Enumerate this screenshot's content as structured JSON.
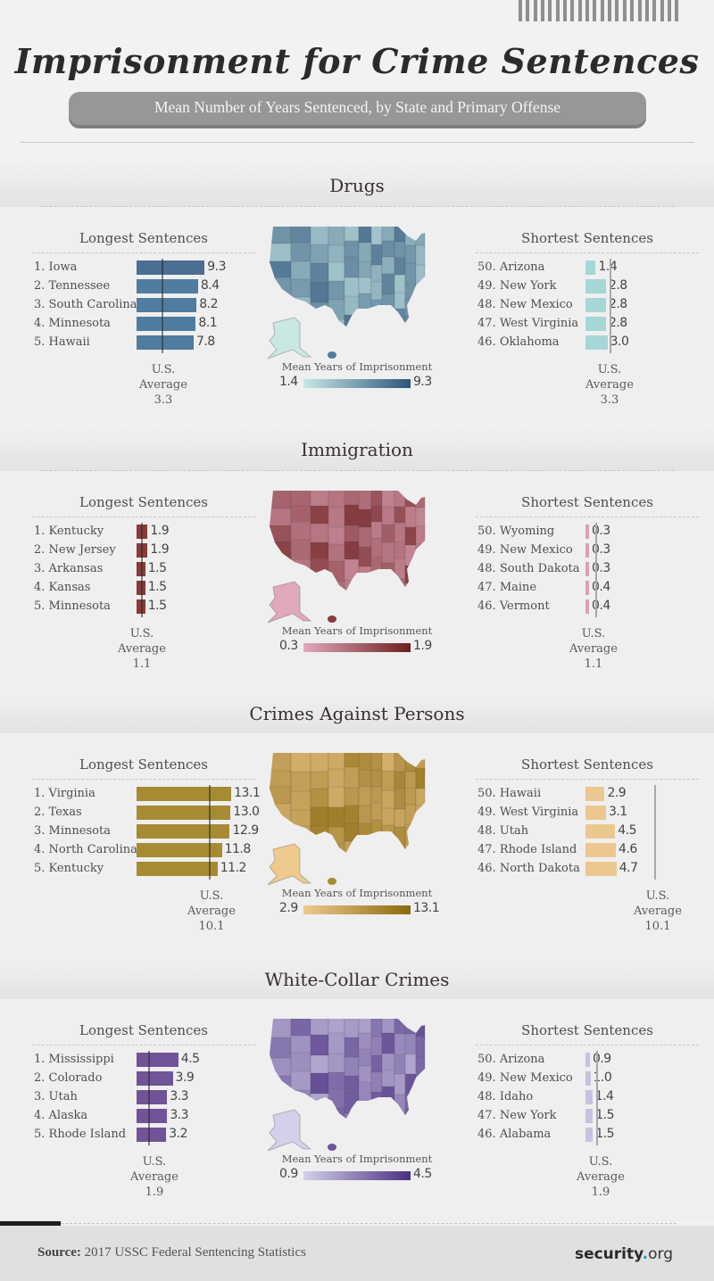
{
  "header": {
    "title": "Imprisonment for Crime Sentences",
    "subtitle": "Mean Number of Years Sentenced, by State and Primary Offense"
  },
  "labels": {
    "longest": "Longest Sentences",
    "shortest": "Shortest Sentences",
    "legend_title": "Mean Years of Imprisonment",
    "us": "U.S.",
    "average": "Average"
  },
  "footer": {
    "source_label": "Source:",
    "source_text": "2017 USSC Federal Sentencing Statistics",
    "brand_main": "security",
    "brand_dot": ".",
    "brand_tld": "org"
  },
  "chart_data": [
    {
      "type": "bar",
      "title": "Drugs",
      "colors": {
        "bar_long": "#4f7c9f",
        "bar_long_top": "#4b6e93",
        "bar_short": "#a6d6d6",
        "legend_min": "#c8e8e4",
        "legend_max": "#2f557d"
      },
      "legend": {
        "min": "1.4",
        "max": "9.3"
      },
      "us_average": "3.3",
      "longest": [
        {
          "rank": "1.",
          "state": "Iowa",
          "value": 9.3,
          "label": "9.3"
        },
        {
          "rank": "2.",
          "state": "Tennessee",
          "value": 8.4,
          "label": "8.4"
        },
        {
          "rank": "3.",
          "state": "South Carolina",
          "value": 8.2,
          "label": "8.2"
        },
        {
          "rank": "4.",
          "state": "Minnesota",
          "value": 8.1,
          "label": "8.1"
        },
        {
          "rank": "5.",
          "state": "Hawaii",
          "value": 7.8,
          "label": "7.8"
        }
      ],
      "shortest": [
        {
          "rank": "50.",
          "state": "Arizona",
          "value": 1.4,
          "label": "1.4"
        },
        {
          "rank": "49.",
          "state": "New York",
          "value": 2.8,
          "label": "2.8"
        },
        {
          "rank": "48.",
          "state": "New Mexico",
          "value": 2.8,
          "label": "2.8"
        },
        {
          "rank": "47.",
          "state": "West Virginia",
          "value": 2.8,
          "label": "2.8"
        },
        {
          "rank": "46.",
          "state": "Oklahoma",
          "value": 3.0,
          "label": "3.0"
        }
      ]
    },
    {
      "type": "bar",
      "title": "Immigration",
      "colors": {
        "bar_long": "#8a3a38",
        "bar_long_top": "#8a3a38",
        "bar_short": "#dca0b4",
        "legend_min": "#e0a8bc",
        "legend_max": "#6e1f1f"
      },
      "legend": {
        "min": "0.3",
        "max": "1.9"
      },
      "us_average": "1.1",
      "longest": [
        {
          "rank": "1.",
          "state": "Kentucky",
          "value": 1.9,
          "label": "1.9"
        },
        {
          "rank": "2.",
          "state": "New Jersey",
          "value": 1.9,
          "label": "1.9"
        },
        {
          "rank": "3.",
          "state": "Arkansas",
          "value": 1.5,
          "label": "1.5"
        },
        {
          "rank": "4.",
          "state": "Kansas",
          "value": 1.5,
          "label": "1.5"
        },
        {
          "rank": "5.",
          "state": "Minnesota",
          "value": 1.5,
          "label": "1.5"
        }
      ],
      "shortest": [
        {
          "rank": "50.",
          "state": "Wyoming",
          "value": 0.3,
          "label": "0.3"
        },
        {
          "rank": "49.",
          "state": "New Mexico",
          "value": 0.3,
          "label": "0.3"
        },
        {
          "rank": "48.",
          "state": "South Dakota",
          "value": 0.3,
          "label": "0.3"
        },
        {
          "rank": "47.",
          "state": "Maine",
          "value": 0.4,
          "label": "0.4"
        },
        {
          "rank": "46.",
          "state": "Vermont",
          "value": 0.4,
          "label": "0.4"
        }
      ]
    },
    {
      "type": "bar",
      "title": "Crimes Against Persons",
      "colors": {
        "bar_long": "#a68b33",
        "bar_long_top": "#a68b33",
        "bar_short": "#ecc890",
        "legend_min": "#efc98e",
        "legend_max": "#8a6a10"
      },
      "legend": {
        "min": "2.9",
        "max": "13.1"
      },
      "us_average": "10.1",
      "longest": [
        {
          "rank": "1.",
          "state": "Virginia",
          "value": 13.1,
          "label": "13.1"
        },
        {
          "rank": "2.",
          "state": "Texas",
          "value": 13.0,
          "label": "13.0"
        },
        {
          "rank": "3.",
          "state": "Minnesota",
          "value": 12.9,
          "label": "12.9"
        },
        {
          "rank": "4.",
          "state": "North Carolina",
          "value": 11.8,
          "label": "11.8"
        },
        {
          "rank": "5.",
          "state": "Kentucky",
          "value": 11.2,
          "label": "11.2"
        }
      ],
      "shortest": [
        {
          "rank": "50.",
          "state": "Hawaii",
          "value": 2.9,
          "label": "2.9"
        },
        {
          "rank": "49.",
          "state": "West Virginia",
          "value": 3.1,
          "label": "3.1"
        },
        {
          "rank": "48.",
          "state": "Utah",
          "value": 4.5,
          "label": "4.5"
        },
        {
          "rank": "47.",
          "state": "Rhode Island",
          "value": 4.6,
          "label": "4.6"
        },
        {
          "rank": "46.",
          "state": "North Dakota",
          "value": 4.7,
          "label": "4.7"
        }
      ]
    },
    {
      "type": "bar",
      "title": "White-Collar Crimes",
      "colors": {
        "bar_long": "#6f5498",
        "bar_long_top": "#6f5498",
        "bar_short": "#c8c2e0",
        "legend_min": "#d4d0ea",
        "legend_max": "#4a2f80"
      },
      "legend": {
        "min": "0.9",
        "max": "4.5"
      },
      "us_average": "1.9",
      "longest": [
        {
          "rank": "1.",
          "state": "Mississippi",
          "value": 4.5,
          "label": "4.5"
        },
        {
          "rank": "2.",
          "state": "Colorado",
          "value": 3.9,
          "label": "3.9"
        },
        {
          "rank": "3.",
          "state": "Utah",
          "value": 3.3,
          "label": "3.3"
        },
        {
          "rank": "4.",
          "state": "Alaska",
          "value": 3.3,
          "label": "3.3"
        },
        {
          "rank": "5.",
          "state": "Rhode Island",
          "value": 3.2,
          "label": "3.2"
        }
      ],
      "shortest": [
        {
          "rank": "50.",
          "state": "Arizona",
          "value": 0.9,
          "label": "0.9"
        },
        {
          "rank": "49.",
          "state": "New Mexico",
          "value": 1.0,
          "label": "1.0"
        },
        {
          "rank": "48.",
          "state": "Idaho",
          "value": 1.4,
          "label": "1.4"
        },
        {
          "rank": "47.",
          "state": "New York",
          "value": 1.5,
          "label": "1.5"
        },
        {
          "rank": "46.",
          "state": "Alabama",
          "value": 1.5,
          "label": "1.5"
        }
      ]
    }
  ]
}
